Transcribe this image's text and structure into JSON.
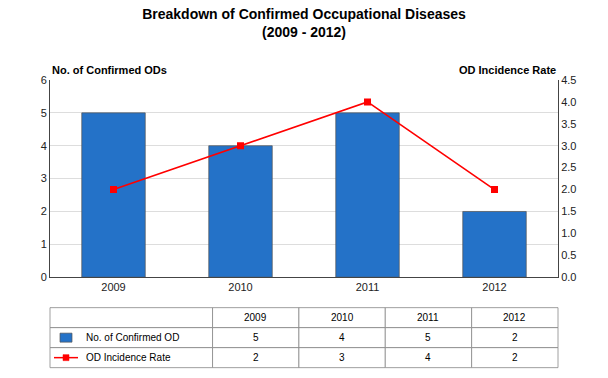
{
  "chart_data": {
    "type": "bar",
    "title": "Breakdown of Confirmed Occupational Diseases",
    "subtitle": "(2009 - 2012)",
    "categories": [
      "2009",
      "2010",
      "2011",
      "2012"
    ],
    "ylabel": "No. of Confirmed ODs",
    "y2label": "OD Incidence Rate",
    "series": [
      {
        "name": "No. of Confirmed OD",
        "type": "bar",
        "color": "#2472C8",
        "values": [
          5,
          4,
          5,
          2
        ]
      },
      {
        "name": "OD Incidence Rate",
        "type": "line",
        "color": "#FF0000",
        "marker": "square",
        "line_style": "solid",
        "axis": "y2",
        "values": [
          2,
          3,
          4,
          2
        ]
      }
    ],
    "ylim": [
      0,
      6
    ],
    "yticks": [
      0,
      1,
      2,
      3,
      4,
      5,
      6
    ],
    "y2lim": [
      0,
      4.5
    ],
    "y2ticks": [
      {
        "value": 0,
        "label": "0.0"
      },
      0.5,
      {
        "value": 1,
        "label": "1.0"
      },
      1.5,
      {
        "value": 2,
        "label": "2.0"
      },
      2.5,
      {
        "value": 3,
        "label": "3.0"
      },
      3.5,
      {
        "value": 4,
        "label": "4.0"
      },
      4.5
    ],
    "grid": true
  }
}
